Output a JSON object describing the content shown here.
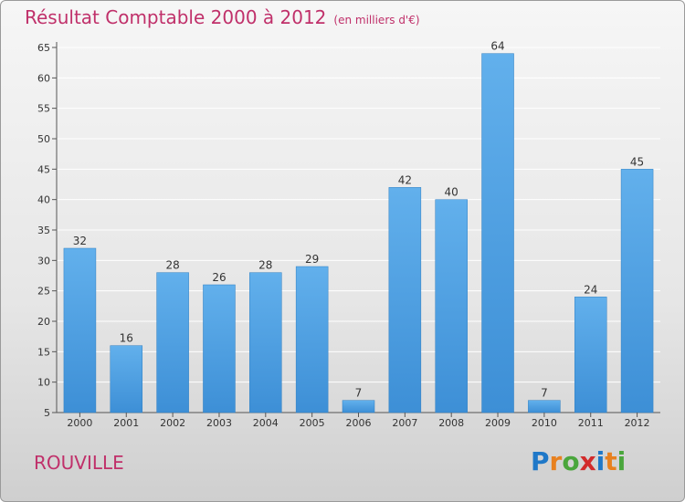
{
  "colors": {
    "bar": "#3d8fd6",
    "bar_light": "#62b0ec",
    "title": "#c0306a",
    "axis": "#555555",
    "grid": "#ffffff"
  },
  "chart_data": {
    "type": "bar",
    "title": "Résultat Comptable 2000 à 2012",
    "unit": "(en milliers d'€)",
    "categories": [
      "2000",
      "2001",
      "2002",
      "2003",
      "2004",
      "2005",
      "2006",
      "2007",
      "2008",
      "2009",
      "2010",
      "2011",
      "2012"
    ],
    "values": [
      32,
      16,
      28,
      26,
      28,
      29,
      7,
      42,
      40,
      64,
      7,
      24,
      45
    ],
    "ylim": [
      5,
      65
    ],
    "yticks": [
      5,
      10,
      15,
      20,
      25,
      30,
      35,
      40,
      45,
      50,
      55,
      60,
      65
    ],
    "xlabel": "",
    "ylabel": "",
    "grid": true
  },
  "footer": {
    "location": "ROUVILLE",
    "logo_letters": [
      {
        "ch": "P",
        "color": "#1f78c8"
      },
      {
        "ch": "r",
        "color": "#e8811f"
      },
      {
        "ch": "o",
        "color": "#4aa63c"
      },
      {
        "ch": "x",
        "color": "#d22b2b"
      },
      {
        "ch": "i",
        "color": "#1f78c8"
      },
      {
        "ch": "t",
        "color": "#e8811f"
      },
      {
        "ch": "i",
        "color": "#4aa63c"
      }
    ]
  }
}
